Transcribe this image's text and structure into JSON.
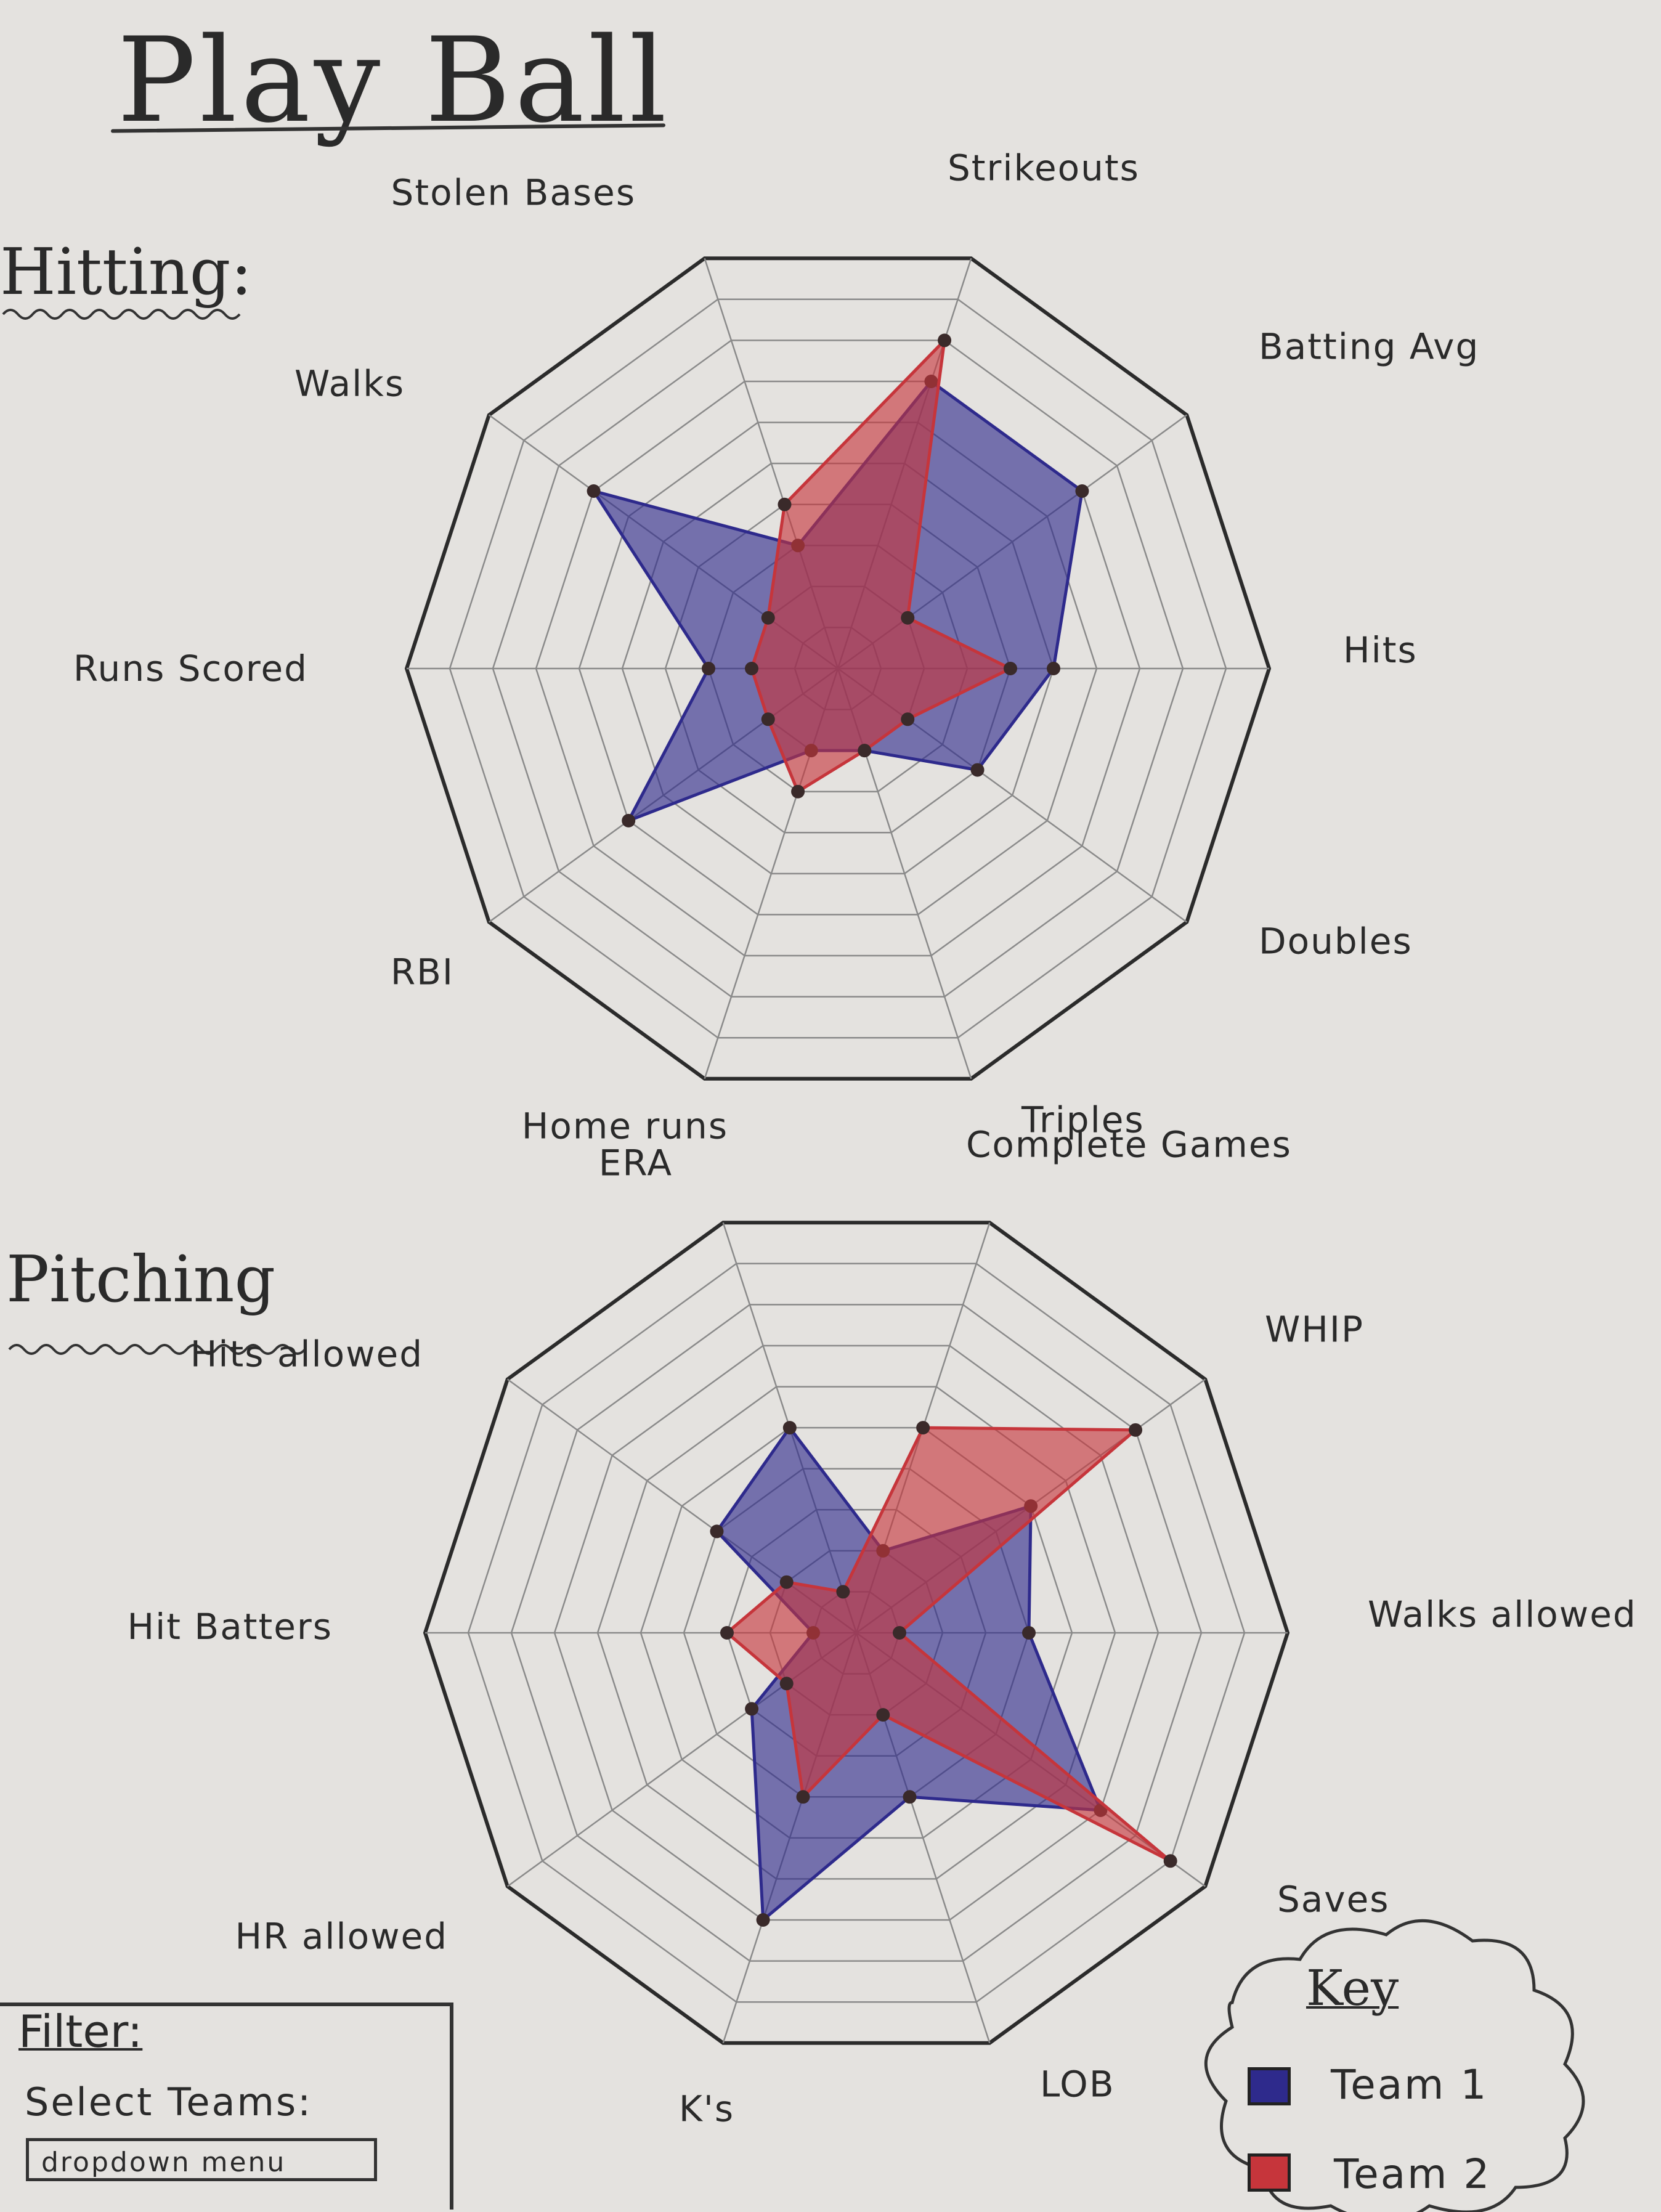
{
  "title": "Play Ball",
  "sections": {
    "hitting": "Hitting:",
    "pitching": "Pitching"
  },
  "filter": {
    "title": "Filter:",
    "select_label": "Select Teams:",
    "dropdown_text": "dropdown menu"
  },
  "key": {
    "title": "Key",
    "items": [
      {
        "label": "Team 1",
        "color": "#2e2a8c"
      },
      {
        "label": "Team 2",
        "color": "#c6353b"
      }
    ]
  },
  "colors": {
    "team1": "#2e2a8c",
    "team2": "#c6353b",
    "grid": "#8a8a8a",
    "outline": "#2b2b2b"
  },
  "chart_data": [
    {
      "type": "radar",
      "title": "Hitting:",
      "axes": [
        "Strikeouts",
        "Batting Avg",
        "Hits",
        "Doubles",
        "Triples",
        "Home runs",
        "RBI",
        "Runs Scored",
        "Walks",
        "Stolen Bases"
      ],
      "scale_max": 10,
      "rings": 10,
      "series": [
        {
          "name": "Team 1",
          "values": [
            7,
            7,
            5,
            4,
            2,
            2,
            6,
            3,
            7,
            3
          ]
        },
        {
          "name": "Team 2",
          "values": [
            8,
            2,
            4,
            2,
            2,
            3,
            2,
            2,
            2,
            4
          ]
        }
      ]
    },
    {
      "type": "radar",
      "title": "Pitching",
      "axes": [
        "WHIP",
        "Walks allowed",
        "Saves",
        "LOB",
        "K's",
        "HR allowed",
        "Hit Batters",
        "Hits allowed",
        "ERA",
        "Complete Games"
      ],
      "scale_max": 10,
      "rings": 10,
      "series": [
        {
          "name": "Team 1",
          "values": [
            5,
            4,
            7,
            4,
            7,
            3,
            1,
            4,
            5,
            2
          ]
        },
        {
          "name": "Team 2",
          "values": [
            8,
            1,
            9,
            2,
            4,
            2,
            3,
            2,
            1,
            5
          ]
        }
      ]
    }
  ]
}
